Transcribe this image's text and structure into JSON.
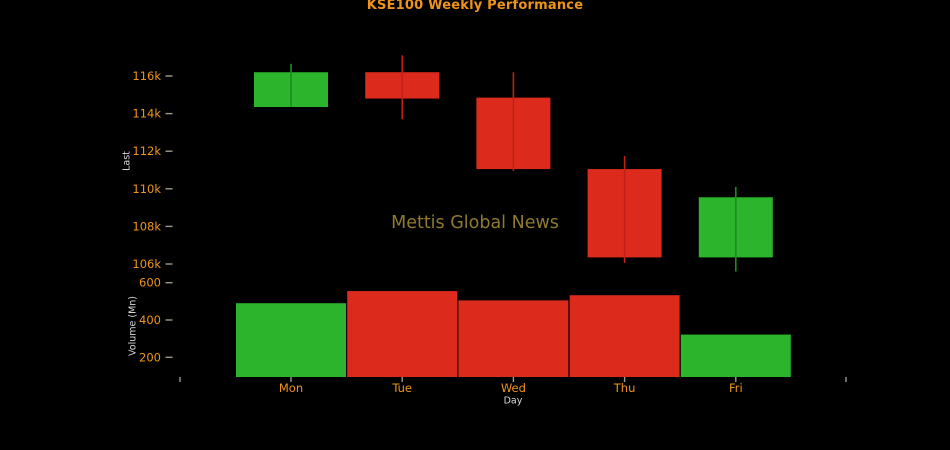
{
  "title": "KSE100 Weekly Performance",
  "watermark": "Mettis Global News",
  "x_axis": {
    "label": "Day",
    "categories": [
      "Mon",
      "Tue",
      "Wed",
      "Thu",
      "Fri"
    ]
  },
  "colors": {
    "background": "#000000",
    "accent_text": "#ef9418",
    "axis_label": "#d9d9d9",
    "tick_mark": "#a09a8e",
    "watermark": "#8f7a30",
    "up": "#2db42d",
    "up_wick": "#1e8c1e",
    "down": "#dc2b1d",
    "down_wick": "#c02015"
  },
  "chart_data": [
    {
      "type": "candlestick",
      "title": "KSE100 Weekly Performance",
      "xlabel": "Day",
      "ylabel": "Last",
      "categories": [
        "Mon",
        "Tue",
        "Wed",
        "Thu",
        "Fri"
      ],
      "ohlc": [
        {
          "day": "Mon",
          "open": 114350,
          "high": 116650,
          "low": 114350,
          "close": 116200,
          "direction": "up"
        },
        {
          "day": "Tue",
          "open": 116200,
          "high": 117100,
          "low": 113700,
          "close": 114800,
          "direction": "down"
        },
        {
          "day": "Wed",
          "open": 114850,
          "high": 116200,
          "low": 110950,
          "close": 111050,
          "direction": "down"
        },
        {
          "day": "Thu",
          "open": 111050,
          "high": 111750,
          "low": 106050,
          "close": 106350,
          "direction": "down"
        },
        {
          "day": "Fri",
          "open": 106350,
          "high": 110100,
          "low": 105600,
          "close": 109550,
          "direction": "up"
        }
      ],
      "y_ticks": [
        "106k",
        "108k",
        "110k",
        "112k",
        "114k",
        "116k"
      ],
      "y_tick_values": [
        106000,
        108000,
        110000,
        112000,
        114000,
        116000
      ],
      "ylim": [
        105100,
        117950
      ],
      "grid": false,
      "legend": "none"
    },
    {
      "type": "bar",
      "xlabel": "Day",
      "ylabel": "Volume (Mn)",
      "categories": [
        "Mon",
        "Tue",
        "Wed",
        "Thu",
        "Fri"
      ],
      "values": [
        490,
        555,
        505,
        533,
        322
      ],
      "directions": [
        "up",
        "down",
        "down",
        "down",
        "up"
      ],
      "y_ticks": [
        200,
        400,
        600
      ],
      "ylim": [
        95,
        630
      ],
      "grid": false,
      "legend": "none"
    }
  ]
}
